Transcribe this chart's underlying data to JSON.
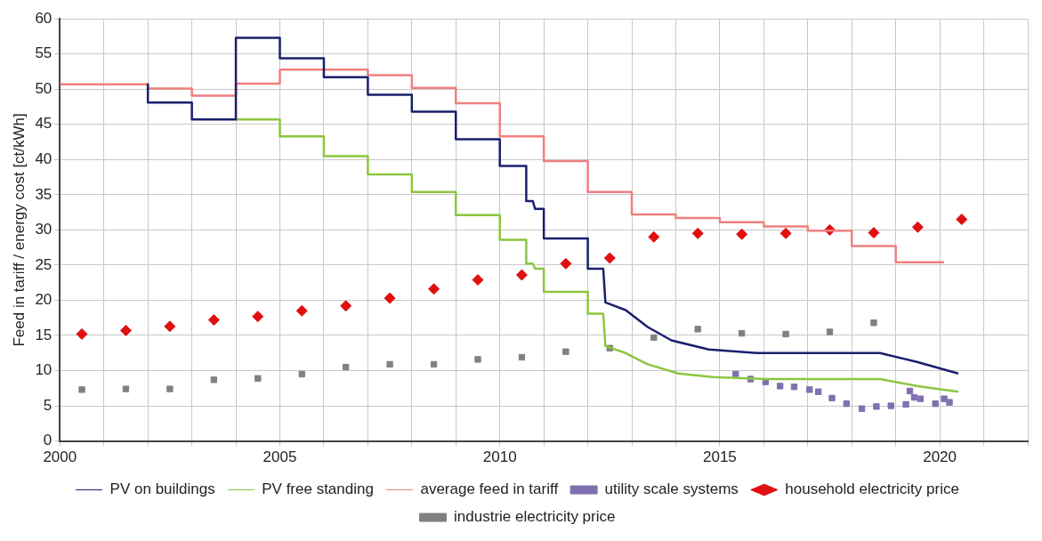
{
  "chart_data": {
    "type": "line",
    "ylabel": "Feed in tariff / energy cost [ct/kWh]",
    "xlim": [
      2000,
      2022
    ],
    "xticks": [
      2000,
      {
        "value": 2001,
        "label": null
      },
      {
        "value": 2002,
        "label": null
      },
      {
        "value": 2003,
        "label": null
      },
      {
        "value": 2004,
        "label": null
      },
      2005,
      {
        "value": 2006,
        "label": null
      },
      {
        "value": 2007,
        "label": null
      },
      {
        "value": 2008,
        "label": null
      },
      {
        "value": 2009,
        "label": null
      },
      2010,
      {
        "value": 2011,
        "label": null
      },
      {
        "value": 2012,
        "label": null
      },
      {
        "value": 2013,
        "label": null
      },
      {
        "value": 2014,
        "label": null
      },
      2015,
      {
        "value": 2016,
        "label": null
      },
      {
        "value": 2017,
        "label": null
      },
      {
        "value": 2018,
        "label": null
      },
      {
        "value": 2019,
        "label": null
      },
      2020,
      {
        "value": 2021,
        "label": null
      },
      {
        "value": 2022,
        "label": null
      }
    ],
    "ylim": [
      0,
      60
    ],
    "yticks": [
      0,
      5,
      10,
      15,
      20,
      25,
      30,
      35,
      40,
      45,
      50,
      55,
      60
    ],
    "grid": true,
    "legend": "bottom",
    "series": [
      {
        "name": "PV on buildings",
        "type": "line",
        "marker": "none",
        "color": "#1a1f6e",
        "x": [
          2002,
          2002,
          2003,
          2003,
          2004,
          2004,
          2005,
          2005,
          2006,
          2006,
          2007,
          2007,
          2008,
          2008,
          2009,
          2009,
          2010,
          2010,
          2010.6,
          2010.6,
          2010.75,
          2010.8,
          2011,
          2011,
          2012,
          2012,
          2012.35,
          2012.4,
          2012.86,
          2013.36,
          2013.9,
          2014.75,
          2015.84,
          2018.64,
          2019.5,
          2020.42
        ],
        "values": [
          50.7,
          48.1,
          48.1,
          45.7,
          45.7,
          57.3,
          57.3,
          54.4,
          54.4,
          51.7,
          51.7,
          49.2,
          49.2,
          46.8,
          46.8,
          42.9,
          42.9,
          39.1,
          39.1,
          34.1,
          34.1,
          33.0,
          33.0,
          28.8,
          28.8,
          24.5,
          24.5,
          19.7,
          18.6,
          16.2,
          14.3,
          13.0,
          12.5,
          12.5,
          11.2,
          9.6
        ]
      },
      {
        "name": "PV free standing",
        "type": "line",
        "marker": "none",
        "color": "#8cc63f",
        "x": [
          2004,
          2005,
          2005,
          2006,
          2006,
          2007,
          2007,
          2008,
          2008,
          2009,
          2009,
          2010,
          2010,
          2010.6,
          2010.6,
          2010.75,
          2010.8,
          2011,
          2011,
          2012,
          2012,
          2012.35,
          2012.4,
          2012.86,
          2013.36,
          2014.06,
          2014.83,
          2016.08,
          2018.64,
          2019.5,
          2020.42
        ],
        "values": [
          45.7,
          45.7,
          43.3,
          43.3,
          40.5,
          40.5,
          37.9,
          37.9,
          35.4,
          35.4,
          32.1,
          32.1,
          28.6,
          28.6,
          25.2,
          25.2,
          24.5,
          24.5,
          21.2,
          21.2,
          18.1,
          18.1,
          13.5,
          12.5,
          10.9,
          9.6,
          9.1,
          8.8,
          8.8,
          7.8,
          7.0
        ]
      },
      {
        "name": "average feed in tariff",
        "type": "step",
        "marker": "none",
        "color": "#f08080",
        "x": [
          2000,
          2002,
          2003,
          2004,
          2005,
          2007,
          2008,
          2009,
          2010,
          2011,
          2012,
          2013,
          2014,
          2015,
          2016,
          2017,
          2018,
          2019,
          2020.1
        ],
        "values": [
          50.7,
          50.1,
          49.1,
          50.8,
          52.8,
          52.0,
          50.2,
          48.0,
          43.3,
          39.8,
          35.4,
          32.2,
          31.7,
          31.1,
          30.5,
          29.9,
          27.7,
          25.4,
          25.4
        ]
      },
      {
        "name": "utility scale systems",
        "type": "scatter",
        "marker": "square",
        "color": "#8070b0",
        "x": [
          2015.36,
          2015.7,
          2016.04,
          2016.37,
          2016.69,
          2017.04,
          2017.24,
          2017.55,
          2017.88,
          2018.23,
          2018.56,
          2018.89,
          2019.23,
          2019.32,
          2019.42,
          2019.56,
          2019.9,
          2020.1,
          2020.22
        ],
        "values": [
          9.5,
          8.8,
          8.4,
          7.8,
          7.7,
          7.3,
          7.0,
          6.1,
          5.3,
          4.6,
          4.9,
          5.0,
          5.2,
          7.1,
          6.2,
          6.0,
          5.3,
          6.0,
          5.5
        ]
      },
      {
        "name": "household electricity price",
        "type": "scatter",
        "marker": "diamond",
        "color": "#e01010",
        "x": [
          2000.5,
          2001.5,
          2002.5,
          2003.5,
          2004.5,
          2005.5,
          2006.5,
          2007.5,
          2008.5,
          2009.5,
          2010.5,
          2011.5,
          2012.5,
          2013.5,
          2014.5,
          2015.5,
          2016.5,
          2017.5,
          2018.5,
          2019.5,
          2020.5
        ],
        "values": [
          15.2,
          15.7,
          16.3,
          17.2,
          17.7,
          18.5,
          19.2,
          20.3,
          21.6,
          22.9,
          23.6,
          25.2,
          26.0,
          29.0,
          29.5,
          29.4,
          29.5,
          30.0,
          29.6,
          30.4,
          31.5
        ]
      },
      {
        "name": "industrie electricity price",
        "type": "scatter",
        "marker": "square",
        "color": "#808080",
        "x": [
          2000.5,
          2001.5,
          2002.5,
          2003.5,
          2004.5,
          2005.5,
          2006.5,
          2007.5,
          2008.5,
          2009.5,
          2010.5,
          2011.5,
          2012.5,
          2013.5,
          2014.5,
          2015.5,
          2016.5,
          2017.5,
          2018.5
        ],
        "values": [
          7.3,
          7.4,
          7.4,
          8.7,
          8.9,
          9.5,
          10.5,
          10.9,
          10.9,
          11.6,
          11.9,
          12.7,
          13.2,
          14.7,
          15.9,
          15.3,
          15.2,
          15.5,
          16.8
        ]
      }
    ]
  }
}
